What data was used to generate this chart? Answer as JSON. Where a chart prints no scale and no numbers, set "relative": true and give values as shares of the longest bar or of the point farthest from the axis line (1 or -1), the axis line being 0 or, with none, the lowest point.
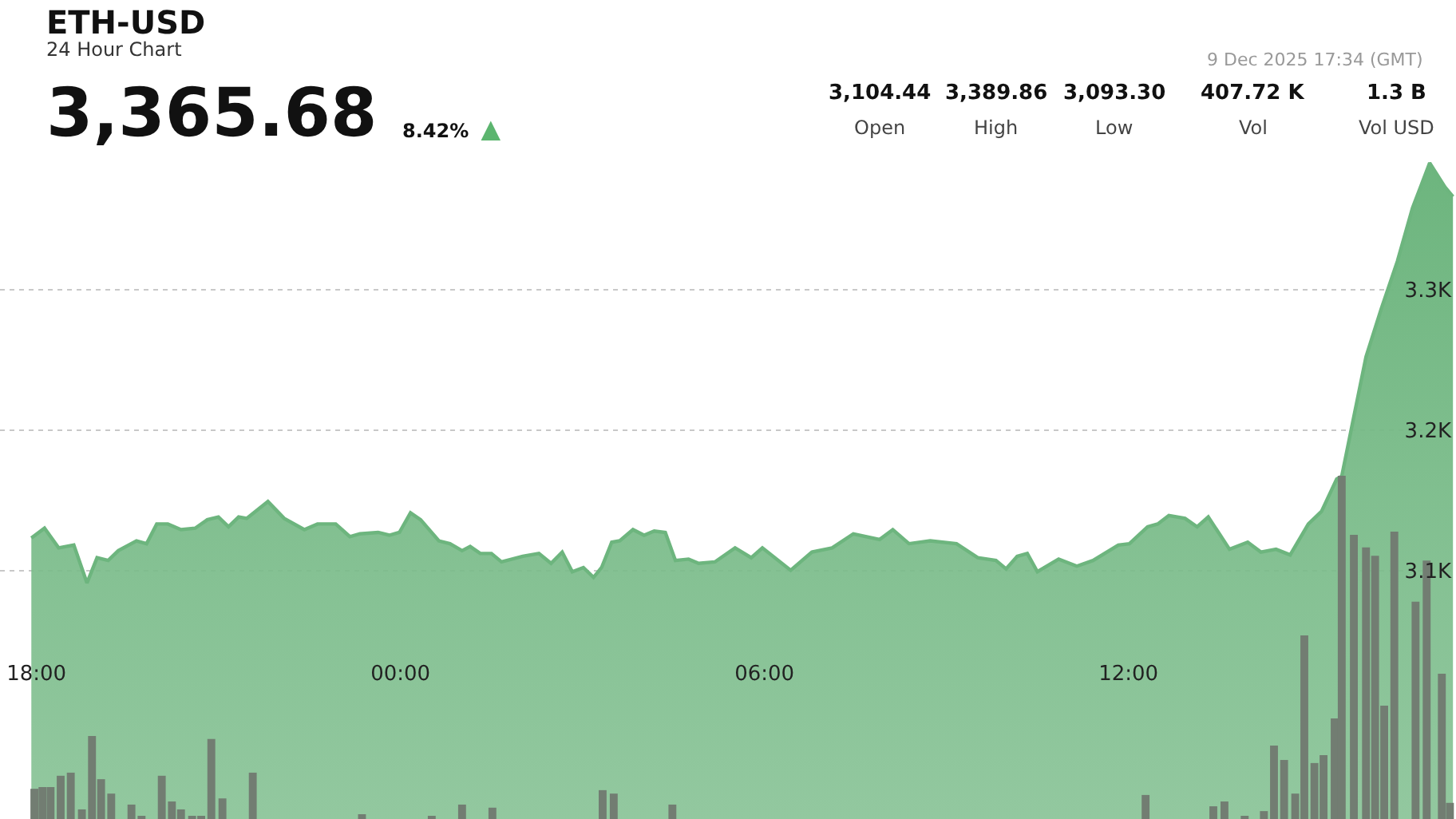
{
  "chart_data": [
    {
      "type": "area",
      "title": "ETH-USD",
      "subtitle": "24 Hour Chart",
      "annotations": [
        "3,365.68",
        "8.42% ▲",
        "9 Dec 2025 17:34 (GMT)",
        "3,104.44",
        "Open",
        "3,389.86",
        "High",
        "3,093.30",
        "Low",
        "407.72 K",
        "Vol",
        "1.3 B",
        "Vol USD"
      ],
      "x": [
        "2025-12-08T17:55",
        "2025-12-08T18:08",
        "2025-12-08T18:22",
        "2025-12-08T18:37",
        "2025-12-08T18:50",
        "2025-12-08T19:00",
        "2025-12-08T19:11",
        "2025-12-08T19:21",
        "2025-12-08T19:39",
        "2025-12-08T19:49",
        "2025-12-08T19:59",
        "2025-12-08T20:10",
        "2025-12-08T20:23",
        "2025-12-08T20:37",
        "2025-12-08T20:49",
        "2025-12-08T21:00",
        "2025-12-08T21:10",
        "2025-12-08T21:20",
        "2025-12-08T21:28",
        "2025-12-08T21:49",
        "2025-12-08T22:05",
        "2025-12-08T22:25",
        "2025-12-08T22:38",
        "2025-12-08T22:56",
        "2025-12-08T23:10",
        "2025-12-08T23:20",
        "2025-12-08T23:38",
        "2025-12-08T23:49",
        "2025-12-08T23:59",
        "2025-12-09T00:10",
        "2025-12-09T00:20",
        "2025-12-09T00:38",
        "2025-12-09T00:49",
        "2025-12-09T01:01",
        "2025-12-09T01:09",
        "2025-12-09T01:19",
        "2025-12-09T01:30",
        "2025-12-09T01:40",
        "2025-12-09T02:01",
        "2025-12-09T02:17",
        "2025-12-09T02:29",
        "2025-12-09T02:40",
        "2025-12-09T02:50",
        "2025-12-09T03:01",
        "2025-12-09T03:11",
        "2025-12-09T03:19",
        "2025-12-09T03:29",
        "2025-12-09T03:37",
        "2025-12-09T03:50",
        "2025-12-09T04:01",
        "2025-12-09T04:11",
        "2025-12-09T04:22",
        "2025-12-09T04:32",
        "2025-12-09T04:45",
        "2025-12-09T04:55",
        "2025-12-09T05:11",
        "2025-12-09T05:31",
        "2025-12-09T05:47",
        "2025-12-09T05:58",
        "2025-12-09T06:26",
        "2025-12-09T06:47",
        "2025-12-09T07:07",
        "2025-12-09T07:28",
        "2025-12-09T07:54",
        "2025-12-09T08:07",
        "2025-12-09T08:23",
        "2025-12-09T08:44",
        "2025-12-09T09:10",
        "2025-12-09T09:31",
        "2025-12-09T09:49",
        "2025-12-09T09:59",
        "2025-12-09T10:10",
        "2025-12-09T10:20",
        "2025-12-09T10:30",
        "2025-12-09T10:51",
        "2025-12-09T11:09",
        "2025-12-09T11:25",
        "2025-12-09T11:50",
        "2025-12-09T12:01",
        "2025-12-09T12:19",
        "2025-12-09T12:29",
        "2025-12-09T12:40",
        "2025-12-09T12:56",
        "2025-12-09T13:08",
        "2025-12-09T13:19",
        "2025-12-09T13:40",
        "2025-12-09T13:58",
        "2025-12-09T14:11",
        "2025-12-09T14:26",
        "2025-12-09T14:40",
        "2025-12-09T14:58",
        "2025-12-09T15:11",
        "2025-12-09T15:26",
        "2025-12-09T15:31",
        "2025-12-09T15:42",
        "2025-12-09T15:55",
        "2025-12-09T16:10",
        "2025-12-09T16:26",
        "2025-12-09T16:41",
        "2025-12-09T16:58",
        "2025-12-09T17:13",
        "2025-12-09T17:21"
      ],
      "series": [
        {
          "color": "#6db57e",
          "values": [
            3123,
            3130,
            3116,
            3118,
            3091,
            3109,
            3107,
            3114,
            3121,
            3119,
            3133,
            3133,
            3129,
            3130,
            3136,
            3138,
            3131,
            3138,
            3137,
            3149,
            3137,
            3129,
            3133,
            3133,
            3124,
            3126,
            3127,
            3125,
            3127,
            3141,
            3136,
            3121,
            3119,
            3114,
            3117,
            3112,
            3112,
            3106,
            3110,
            3112,
            3105,
            3113,
            3099,
            3102,
            3095,
            3102,
            3120,
            3121,
            3129,
            3125,
            3128,
            3127,
            3107,
            3108,
            3105,
            3106,
            3116,
            3109,
            3116,
            3100,
            3113,
            3116,
            3126,
            3122,
            3129,
            3119,
            3121,
            3119,
            3109,
            3107,
            3101,
            3110,
            3112,
            3099,
            3108,
            3103,
            3107,
            3118,
            3119,
            3131,
            3133,
            3139,
            3137,
            3131,
            3138,
            3115,
            3120,
            3113,
            3115,
            3111,
            3133,
            3142,
            3165,
            3167,
            3206,
            3252,
            3286,
            3320,
            3358,
            3390,
            3373,
            3366
          ]
        }
      ],
      "xlim": [
        "2025-12-08T17:24",
        "2025-12-09T17:24"
      ],
      "ylim": [
        2923,
        3506
      ],
      "xticks": [
        {
          "value": "2025-12-08T18:00",
          "label": "18:00"
        },
        {
          "value": "2025-12-09T00:00",
          "label": "00:00"
        },
        {
          "value": "2025-12-09T06:00",
          "label": "06:00"
        },
        {
          "value": "2025-12-09T12:00",
          "label": "12:00"
        }
      ],
      "yticks": [
        {
          "value": 3100,
          "label": "3.1K"
        },
        {
          "value": 3200,
          "label": "3.2K"
        },
        {
          "value": 3300,
          "label": "3.3K"
        }
      ],
      "grid": "y"
    },
    {
      "type": "bar",
      "relative": true,
      "xlim": [
        "2025-12-08T17:24",
        "2025-12-09T17:24"
      ],
      "x": [
        "2025-12-08T17:58",
        "2025-12-08T18:06",
        "2025-12-08T18:14",
        "2025-12-08T18:24",
        "2025-12-08T18:34",
        "2025-12-08T18:45",
        "2025-12-08T18:55",
        "2025-12-08T19:04",
        "2025-12-08T19:14",
        "2025-12-08T19:34",
        "2025-12-08T19:44",
        "2025-12-08T20:04",
        "2025-12-08T20:14",
        "2025-12-08T20:23",
        "2025-12-08T20:34",
        "2025-12-08T20:43",
        "2025-12-08T20:53",
        "2025-12-08T21:04",
        "2025-12-08T21:34",
        "2025-12-08T23:22",
        "2025-12-09T00:31",
        "2025-12-09T01:01",
        "2025-12-09T01:31",
        "2025-12-09T03:20",
        "2025-12-09T03:31",
        "2025-12-09T04:29",
        "2025-12-09T12:17",
        "2025-12-09T13:24",
        "2025-12-09T13:35",
        "2025-12-09T13:55",
        "2025-12-09T14:14",
        "2025-12-09T14:24",
        "2025-12-09T14:34",
        "2025-12-09T14:45",
        "2025-12-09T14:54",
        "2025-12-09T15:04",
        "2025-12-09T15:13",
        "2025-12-09T15:24",
        "2025-12-09T15:31",
        "2025-12-09T15:43",
        "2025-12-09T15:55",
        "2025-12-09T16:04",
        "2025-12-09T16:13",
        "2025-12-09T16:23",
        "2025-12-09T16:44",
        "2025-12-09T16:55",
        "2025-12-09T17:10",
        "2025-12-09T17:18"
      ],
      "series": [
        {
          "color": "#727d72",
          "values": [
            0.088,
            0.093,
            0.093,
            0.126,
            0.135,
            0.028,
            0.242,
            0.116,
            0.074,
            0.042,
            0.009,
            0.126,
            0.051,
            0.028,
            0.005,
            0.009,
            0.233,
            0.06,
            0.135,
            0.014,
            0.005,
            0.042,
            0.033,
            0.084,
            0.074,
            0.042,
            0.07,
            0.037,
            0.051,
            0.005,
            0.023,
            0.214,
            0.172,
            0.074,
            0.535,
            0.163,
            0.186,
            0.293,
            1,
            0.828,
            0.791,
            0.767,
            0.33,
            0.837,
            0.633,
            0.753,
            0.423,
            0.047
          ]
        }
      ]
    }
  ]
}
